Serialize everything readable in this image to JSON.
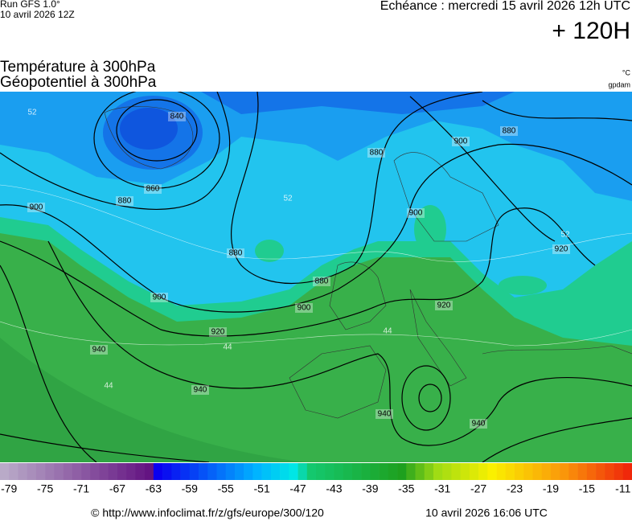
{
  "header": {
    "run": "Run GFS 1.0°",
    "run_date": "10 avril 2026 12Z",
    "valid": "Echéance : mercredi 15 avril 2026 12h UTC",
    "lead": "+ 120H"
  },
  "titles": [
    "Température à 300hPa",
    "Géopotentiel à 300hPa"
  ],
  "units": [
    "°C",
    "gpdam"
  ],
  "contour_labels": [
    840,
    860,
    880,
    900,
    880,
    880,
    900,
    900,
    920,
    940,
    940,
    900,
    880,
    880,
    900,
    920,
    920,
    940,
    940
  ],
  "temperature_labels": [
    52,
    52,
    52,
    44,
    44,
    44
  ],
  "colorbar": {
    "labels": [
      -79,
      -75,
      -71,
      -67,
      -63,
      -59,
      -55,
      -51,
      -47,
      -43,
      -39,
      -35,
      -31,
      -27,
      -23,
      -19,
      -15,
      -11
    ]
  },
  "footer": {
    "source": "© http://www.infoclimat.fr/z/gfs/europe/300/120",
    "generated": "10 avril 2026 16:06 UTC"
  }
}
